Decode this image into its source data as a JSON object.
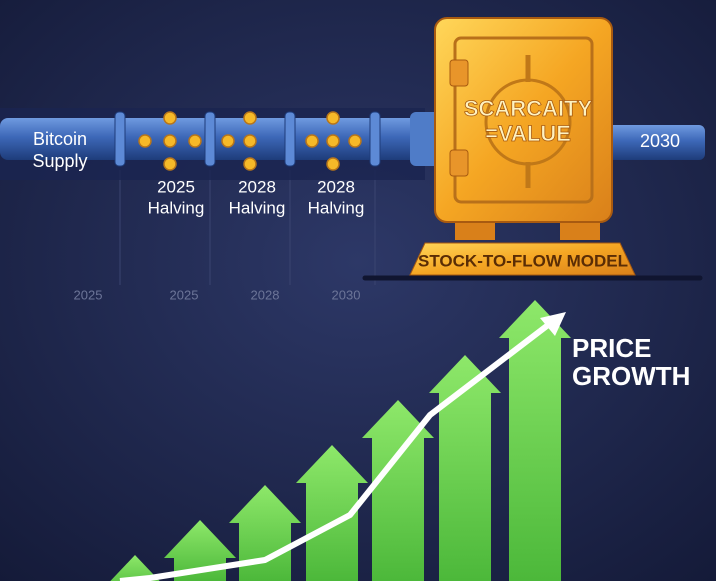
{
  "pipe": {
    "label_lines": [
      "Bitcoin",
      "Supply"
    ],
    "end_label": "2030"
  },
  "halvings": [
    {
      "year": "2025",
      "label": "Halving"
    },
    {
      "year": "2028",
      "label": "Halving"
    },
    {
      "year": "2028",
      "label": "Halving"
    }
  ],
  "timeline": [
    "2025",
    "2025",
    "2028",
    "2030"
  ],
  "vault": {
    "text_lines": [
      "SCARCAITY",
      "=VALUE"
    ],
    "base_label": "STOCK-TO-FLOW MODEL"
  },
  "growth": {
    "label_lines": [
      "PRICE",
      "GROWTH"
    ]
  }
}
